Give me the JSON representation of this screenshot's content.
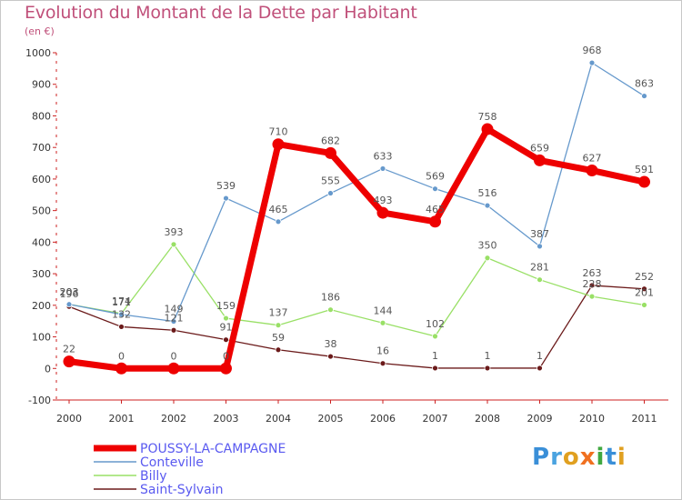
{
  "chart_data": {
    "type": "line",
    "title": "Evolution du Montant de la Dette par Habitant",
    "subtitle": "(en €)",
    "x": [
      "2000",
      "2001",
      "2002",
      "2003",
      "2004",
      "2005",
      "2006",
      "2007",
      "2008",
      "2009",
      "2010",
      "2011"
    ],
    "y_ticks": [
      "-100",
      "0",
      "100",
      "200",
      "300",
      "400",
      "500",
      "600",
      "700",
      "800",
      "900",
      "1000"
    ],
    "ylim": [
      -100,
      1000
    ],
    "grid": false,
    "legend_position": "bottom-left",
    "series": [
      {
        "name": "Saint-Sylvain",
        "color": "#6b1a1a",
        "width": 1.3,
        "values": [
          196,
          132,
          121,
          91,
          59,
          38,
          16,
          1,
          1,
          1,
          263,
          252
        ],
        "labels": [
          "196",
          "132",
          "121",
          "91",
          "59",
          "38",
          "16",
          "1",
          "1",
          "1",
          "263",
          "252"
        ]
      },
      {
        "name": "Billy",
        "color": "#99e066",
        "width": 1.3,
        "values": [
          203,
          174,
          393,
          159,
          137,
          186,
          144,
          102,
          350,
          281,
          228,
          201
        ],
        "labels": [
          "203",
          "174",
          "393",
          "159",
          "137",
          "186",
          "144",
          "102",
          "350",
          "281",
          "228",
          "201"
        ]
      },
      {
        "name": "Conteville",
        "color": "#6699cc",
        "width": 1.3,
        "values": [
          203,
          171,
          149,
          539,
          465,
          555,
          633,
          569,
          516,
          387,
          968,
          863
        ],
        "labels": [
          "203",
          "171",
          "149",
          "539",
          "465",
          "555",
          "633",
          "569",
          "516",
          "387",
          "968",
          "863"
        ]
      },
      {
        "name": "POUSSY-LA-CAMPAGNE",
        "color": "#ee0000",
        "width": 7,
        "values": [
          22,
          0,
          0,
          0,
          710,
          682,
          493,
          465,
          758,
          659,
          627,
          591
        ],
        "labels": [
          "22",
          "0",
          "0",
          "0",
          "710",
          "682",
          "493",
          "465",
          "758",
          "659",
          "627",
          "591"
        ]
      }
    ],
    "legend": [
      "POUSSY-LA-CAMPAGNE",
      "Conteville",
      "Billy",
      "Saint-Sylvain"
    ],
    "logo_text": "Proxiti"
  }
}
